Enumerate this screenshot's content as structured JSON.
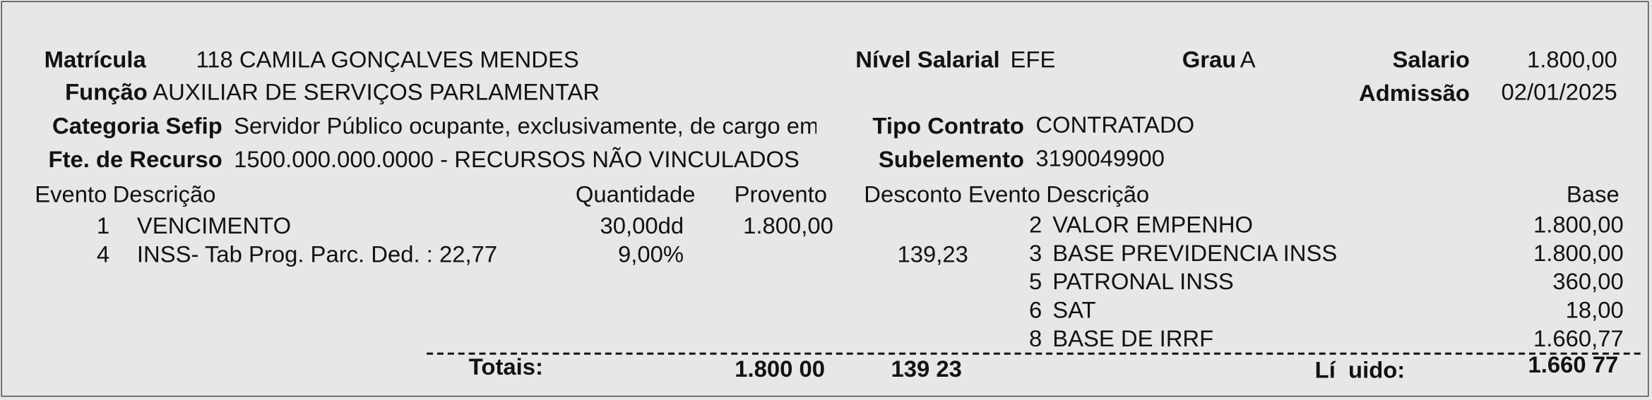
{
  "header": {
    "matricula_label": "Matrícula",
    "matricula_value": "118 CAMILA GONÇALVES MENDES",
    "nivel_label": "Nível Salarial",
    "nivel_value": "EFE",
    "grau_label": "Grau",
    "grau_value": "A",
    "salario_label": "Salario",
    "salario_value": "1.800,00",
    "funcao_label": "Função",
    "funcao_value": "AUXILIAR DE SERVIÇOS PARLAMENTAR",
    "admissao_label": "Admissão",
    "admissao_value": "02/01/2025",
    "categoria_label": "Categoria Sefip",
    "categoria_value": "Servidor Público ocupante, exclusivamente, de cargo em",
    "tipo_label": "Tipo Contrato",
    "tipo_value": "CONTRATADO",
    "fonte_label": "Fte. de Recurso",
    "fonte_value": "1500.000.000.0000 - RECURSOS NÃO VINCULADOS",
    "subelemento_label": "Subelemento",
    "subelemento_value": "3190049900"
  },
  "columns": {
    "evento": "Evento",
    "descricao": "Descrição",
    "quantidade": "Quantidade",
    "provento": "Provento",
    "desconto": "Desconto",
    "evento2": "Evento",
    "descricao2": "Descrição",
    "base": "Base"
  },
  "events": [
    {
      "evento": "1",
      "descricao": "VENCIMENTO",
      "quantidade": "30,00dd",
      "provento": "1.800,00",
      "desconto": ""
    },
    {
      "evento": "4",
      "descricao": "INSS- Tab Prog. Parc. Ded. : 22,77",
      "quantidade": "9,00%",
      "provento": "",
      "desconto": "139,23"
    }
  ],
  "bases": [
    {
      "evento": "2",
      "descricao": "VALOR EMPENHO",
      "base": "1.800,00"
    },
    {
      "evento": "3",
      "descricao": "BASE PREVIDENCIA INSS",
      "base": "1.800,00"
    },
    {
      "evento": "5",
      "descricao": "PATRONAL INSS",
      "base": "360,00"
    },
    {
      "evento": "6",
      "descricao": "SAT",
      "base": "18,00"
    },
    {
      "evento": "8",
      "descricao": "BASE DE IRRF",
      "base": "1.660,77"
    }
  ],
  "totals": {
    "label": "Totais:",
    "proventos": "1.800 00",
    "descontos": "139 23",
    "liquido_label": "Lí  uido:",
    "liquido": "1.660 77"
  }
}
